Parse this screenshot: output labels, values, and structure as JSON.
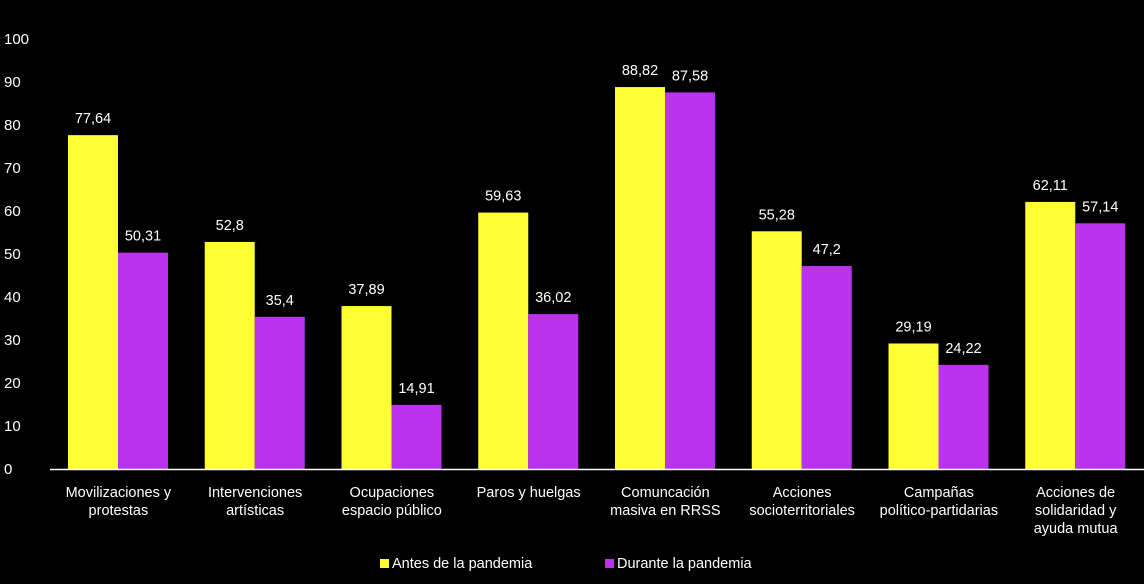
{
  "chart_data": {
    "type": "bar",
    "title": "",
    "xlabel": "",
    "ylabel": "",
    "ylim": [
      0,
      100
    ],
    "yticks": [
      0,
      10,
      20,
      30,
      40,
      50,
      60,
      70,
      80,
      90,
      100
    ],
    "grid": false,
    "legend_position": "bottom-center",
    "categories": [
      [
        "Movilizaciones y",
        "protestas"
      ],
      [
        "Intervenciones",
        "artísticas"
      ],
      [
        "Ocupaciones",
        "espacio público"
      ],
      [
        "Paros y huelgas"
      ],
      [
        "Comuncación",
        "masiva en RRSS"
      ],
      [
        "Acciones",
        "socioterritoriales"
      ],
      [
        "Campañas",
        "político-partidarias"
      ],
      [
        "Acciones de",
        "solidaridad y",
        "ayuda mutua"
      ]
    ],
    "series": [
      {
        "name": "Antes de la pandemia",
        "color": "#ffff33",
        "values": [
          77.64,
          52.8,
          37.89,
          59.63,
          88.82,
          55.28,
          29.19,
          62.11
        ],
        "labels": [
          "77,64",
          "52,8",
          "37,89",
          "59,63",
          "88,82",
          "55,28",
          "29,19",
          "62,11"
        ]
      },
      {
        "name": "Durante la pandemia",
        "color": "#bb33ee",
        "values": [
          50.31,
          35.4,
          14.91,
          36.02,
          87.58,
          47.2,
          24.22,
          57.14
        ],
        "labels": [
          "50,31",
          "35,4",
          "14,91",
          "36,02",
          "87,58",
          "47,2",
          "24,22",
          "57,14"
        ]
      }
    ]
  }
}
